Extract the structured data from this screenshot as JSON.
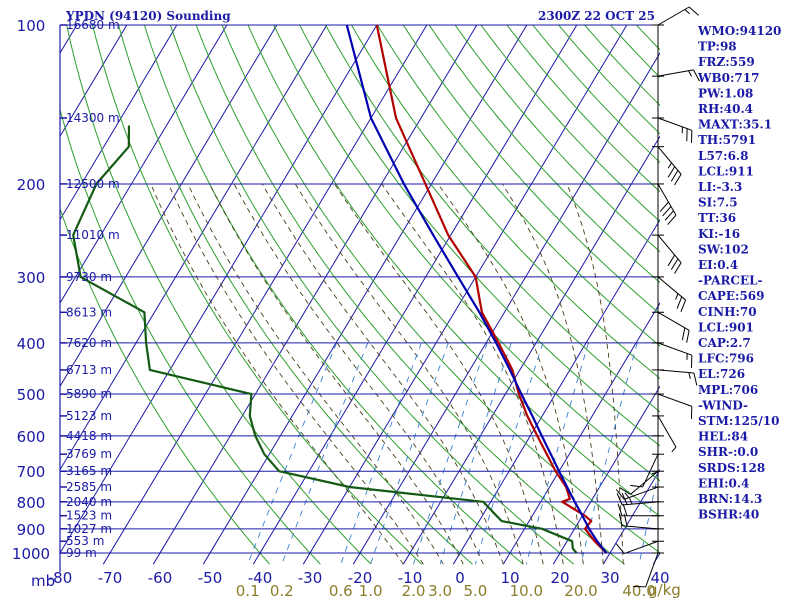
{
  "chart_data": {
    "type": "skew-t",
    "title": "YPDN (94120) Sounding",
    "valid_time": "2300Z 22 OCT 25",
    "pressure_axis": {
      "unit_label": "mb",
      "levels": [
        100,
        200,
        300,
        400,
        500,
        600,
        700,
        800,
        900,
        1000
      ],
      "range": [
        100,
        1050
      ]
    },
    "temperature_axis": {
      "labels": [
        "-80",
        "-70",
        "-60",
        "-50",
        "-40",
        "-30",
        "-20",
        "-10",
        "0",
        "10",
        "20",
        "30",
        "40"
      ],
      "values": [
        -80,
        -70,
        -60,
        -50,
        -40,
        -30,
        -20,
        -10,
        0,
        10,
        20,
        30,
        40
      ],
      "range": [
        -80,
        40
      ]
    },
    "height_labels": [
      {
        "p": 100,
        "label": "16680 m"
      },
      {
        "p": 150,
        "label": "14300 m"
      },
      {
        "p": 200,
        "label": "12500 m"
      },
      {
        "p": 250,
        "label": "11010 m"
      },
      {
        "p": 300,
        "label": "9730 m"
      },
      {
        "p": 350,
        "label": "8613 m"
      },
      {
        "p": 400,
        "label": "7620 m"
      },
      {
        "p": 450,
        "label": "6713 m"
      },
      {
        "p": 500,
        "label": "5890 m"
      },
      {
        "p": 550,
        "label": "5123 m"
      },
      {
        "p": 600,
        "label": "4418 m"
      },
      {
        "p": 650,
        "label": "3769 m"
      },
      {
        "p": 700,
        "label": "3165 m"
      },
      {
        "p": 750,
        "label": "2585 m"
      },
      {
        "p": 800,
        "label": "2040 m"
      },
      {
        "p": 850,
        "label": "1523 m"
      },
      {
        "p": 900,
        "label": "1027 m"
      },
      {
        "p": 950,
        "label": "553 m"
      },
      {
        "p": 1000,
        "label": "99 m"
      }
    ],
    "mixing_ratio_labels": [
      {
        "w": 0.1,
        "label": "0.1"
      },
      {
        "w": 0.2,
        "label": "0.2"
      },
      {
        "w": 0.6,
        "label": "0.6"
      },
      {
        "w": 1.0,
        "label": "1.0"
      },
      {
        "w": 2.0,
        "label": "2.0"
      },
      {
        "w": 3.0,
        "label": "3.0"
      },
      {
        "w": 5.0,
        "label": "5.0"
      },
      {
        "w": 10.0,
        "label": "10.0"
      },
      {
        "w": 20.0,
        "label": "20.0"
      },
      {
        "w": 40.0,
        "label": "40.0"
      }
    ],
    "mixing_ratio_unit": "g/kg",
    "series": [
      {
        "name": "temperature",
        "color": "#b00000",
        "points": [
          {
            "p": 1000,
            "t": 29.3
          },
          {
            "p": 950,
            "t": 25.5
          },
          {
            "p": 900,
            "t": 22.1
          },
          {
            "p": 870,
            "t": 22.4
          },
          {
            "p": 850,
            "t": 20.5
          },
          {
            "p": 800,
            "t": 14.3
          },
          {
            "p": 790,
            "t": 15.5
          },
          {
            "p": 750,
            "t": 13.3
          },
          {
            "p": 700,
            "t": 9.3
          },
          {
            "p": 650,
            "t": 5.5
          },
          {
            "p": 600,
            "t": 1.4
          },
          {
            "p": 550,
            "t": -3.0
          },
          {
            "p": 500,
            "t": -7.3
          },
          {
            "p": 450,
            "t": -11.5
          },
          {
            "p": 400,
            "t": -17.5
          },
          {
            "p": 350,
            "t": -24.5
          },
          {
            "p": 300,
            "t": -30.0
          },
          {
            "p": 250,
            "t": -40.5
          },
          {
            "p": 200,
            "t": -51.2
          },
          {
            "p": 150,
            "t": -65.0
          },
          {
            "p": 100,
            "t": -80.0
          }
        ]
      },
      {
        "name": "dewpoint",
        "color": "#145a14",
        "points": [
          {
            "p": 1000,
            "t": 23.3
          },
          {
            "p": 980,
            "t": 22.0
          },
          {
            "p": 950,
            "t": 21.0
          },
          {
            "p": 900,
            "t": 13.5
          },
          {
            "p": 870,
            "t": 4.5
          },
          {
            "p": 850,
            "t": 2.8
          },
          {
            "p": 800,
            "t": -1.5
          },
          {
            "p": 750,
            "t": -30.0
          },
          {
            "p": 700,
            "t": -46.0
          },
          {
            "p": 650,
            "t": -51.0
          },
          {
            "p": 600,
            "t": -55.0
          },
          {
            "p": 550,
            "t": -58.5
          },
          {
            "p": 500,
            "t": -60.8
          },
          {
            "p": 450,
            "t": -84.0
          },
          {
            "p": 400,
            "t": -88.0
          },
          {
            "p": 350,
            "t": -92.0
          },
          {
            "p": 300,
            "t": -109.0
          },
          {
            "p": 250,
            "t": -115.5
          },
          {
            "p": 200,
            "t": -117.0
          },
          {
            "p": 170,
            "t": -115.0
          },
          {
            "p": 155,
            "t": -117.5
          }
        ]
      },
      {
        "name": "parcel",
        "color": "#0000b0",
        "points": [
          {
            "p": 1000,
            "t": 29.3
          },
          {
            "p": 950,
            "t": 26.0
          },
          {
            "p": 901,
            "t": 23.0
          },
          {
            "p": 850,
            "t": 20.0
          },
          {
            "p": 800,
            "t": 16.8
          },
          {
            "p": 750,
            "t": 13.5
          },
          {
            "p": 700,
            "t": 10.0
          },
          {
            "p": 650,
            "t": 6.3
          },
          {
            "p": 600,
            "t": 2.3
          },
          {
            "p": 550,
            "t": -2.0
          },
          {
            "p": 500,
            "t": -6.8
          },
          {
            "p": 450,
            "t": -12.0
          },
          {
            "p": 400,
            "t": -18.0
          },
          {
            "p": 350,
            "t": -25.0
          },
          {
            "p": 300,
            "t": -33.5
          },
          {
            "p": 250,
            "t": -43.5
          },
          {
            "p": 200,
            "t": -55.5
          },
          {
            "p": 150,
            "t": -70.0
          },
          {
            "p": 100,
            "t": -86.0
          }
        ]
      }
    ],
    "winds": [
      {
        "p": 1000,
        "dir": 200,
        "spd": 10
      },
      {
        "p": 950,
        "dir": 250,
        "spd": 10
      },
      {
        "p": 900,
        "dir": 275,
        "spd": 20
      },
      {
        "p": 850,
        "dir": 270,
        "spd": 20
      },
      {
        "p": 800,
        "dir": 265,
        "spd": 25
      },
      {
        "p": 750,
        "dir": 250,
        "spd": 15
      },
      {
        "p": 700,
        "dir": 230,
        "spd": 10
      },
      {
        "p": 650,
        "dir": 205,
        "spd": 10
      },
      {
        "p": 600,
        "dir": 180,
        "spd": 5
      },
      {
        "p": 550,
        "dir": 150,
        "spd": 5
      },
      {
        "p": 500,
        "dir": 110,
        "spd": 10
      },
      {
        "p": 450,
        "dir": 95,
        "spd": 15
      },
      {
        "p": 400,
        "dir": 110,
        "spd": 15
      },
      {
        "p": 350,
        "dir": 120,
        "spd": 20
      },
      {
        "p": 300,
        "dir": 130,
        "spd": 25
      },
      {
        "p": 250,
        "dir": 140,
        "spd": 30
      },
      {
        "p": 200,
        "dir": 150,
        "spd": 40
      },
      {
        "p": 170,
        "dir": 140,
        "spd": 35
      },
      {
        "p": 150,
        "dir": 110,
        "spd": 25
      },
      {
        "p": 125,
        "dir": 80,
        "spd": 15
      },
      {
        "p": 100,
        "dir": 60,
        "spd": 15
      }
    ]
  },
  "indices": [
    "WMO:94120",
    "TP:98",
    "FRZ:559",
    "WB0:717",
    "PW:1.08",
    "RH:40.4",
    "MAXT:35.1",
    "TH:5791",
    "L57:6.8",
    "LCL:911",
    "LI:-3.3",
    "SI:7.5",
    "TT:36",
    "KI:-16",
    "SW:102",
    "EI:0.4",
    "-PARCEL-",
    "CAPE:569",
    "CINH:70",
    "LCL:901",
    "CAP:2.7",
    "LFC:796",
    "EL:726",
    "MPL:706",
    "-WIND-",
    "STM:125/10",
    "HEL:84",
    "SHR-:0.0",
    "SRDS:128",
    "EHI:0.4",
    "BRN:14.3",
    "BSHR:40"
  ],
  "colors": {
    "isobar": "#1a1aa6",
    "isotherm": "#1a1aa6",
    "dry_adiabat": "#2ca02c",
    "moist_adiabat": "#4a3f1a",
    "mixing_ratio": "#3a7fd0",
    "temperature": "#b00000",
    "dewpoint": "#145a14",
    "parcel": "#0000b0",
    "mixing_label": "#8b7d2a"
  }
}
